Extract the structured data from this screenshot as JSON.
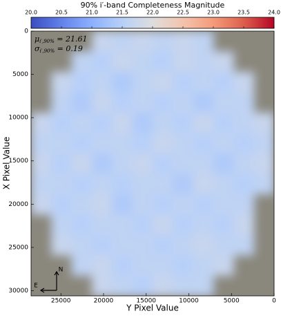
{
  "chart_data": {
    "type": "heatmap",
    "colorbar_title": "90% i′-band Completeness Magnitude",
    "x_label": "Y Pixel Value",
    "y_label": "X Pixel Value",
    "colormap": "coolwarm",
    "clim": [
      20.0,
      24.0
    ],
    "cticks": [
      {
        "value": 20.0,
        "label": "20.0"
      },
      {
        "value": 20.5,
        "label": "20.5"
      },
      {
        "value": 21.0,
        "label": "21.0"
      },
      {
        "value": 21.5,
        "label": "21.5"
      },
      {
        "value": 22.0,
        "label": "22.0"
      },
      {
        "value": 22.5,
        "label": "22.5"
      },
      {
        "value": 23.0,
        "label": "23.0"
      },
      {
        "value": 23.5,
        "label": "23.5"
      },
      {
        "value": 24.0,
        "label": "24.0"
      }
    ],
    "xlim": [
      28500,
      0
    ],
    "xticks": [
      25000,
      20000,
      15000,
      10000,
      5000,
      0
    ],
    "ylim": [
      0,
      30600
    ],
    "y_inverted": true,
    "yticks": [
      0,
      5000,
      10000,
      15000,
      20000,
      25000,
      30000
    ],
    "z": [
      [
        null,
        null,
        null,
        21.7,
        21.6,
        21.7,
        21.6,
        21.7,
        21.6,
        null,
        null,
        null
      ],
      [
        null,
        null,
        21.6,
        21.5,
        21.7,
        21.6,
        21.5,
        21.7,
        21.6,
        21.7,
        null,
        null
      ],
      [
        null,
        21.7,
        21.5,
        21.6,
        21.4,
        21.6,
        21.7,
        21.5,
        21.6,
        21.5,
        21.7,
        null
      ],
      [
        null,
        21.6,
        21.4,
        21.7,
        21.5,
        21.6,
        21.5,
        21.6,
        21.4,
        21.6,
        21.6,
        null
      ],
      [
        21.7,
        21.5,
        21.6,
        21.5,
        21.7,
        21.4,
        21.6,
        21.5,
        21.7,
        21.5,
        21.6,
        21.7
      ],
      [
        21.6,
        21.6,
        21.5,
        21.6,
        21.6,
        21.5,
        21.7,
        21.6,
        21.5,
        21.6,
        21.5,
        21.6
      ],
      [
        21.7,
        21.5,
        21.7,
        21.4,
        21.6,
        21.7,
        21.5,
        21.6,
        21.6,
        21.4,
        21.6,
        21.7
      ],
      [
        21.6,
        21.6,
        21.5,
        21.6,
        21.5,
        21.6,
        21.6,
        21.4,
        21.7,
        21.6,
        21.5,
        21.6
      ],
      [
        21.7,
        21.5,
        21.6,
        21.7,
        21.4,
        21.6,
        21.5,
        21.6,
        21.5,
        21.6,
        21.6,
        null
      ],
      [
        null,
        21.6,
        21.5,
        21.6,
        21.6,
        21.5,
        21.7,
        21.5,
        21.6,
        21.5,
        21.7,
        null
      ],
      [
        null,
        21.7,
        21.6,
        21.5,
        21.6,
        21.6,
        21.5,
        21.6,
        21.7,
        21.6,
        21.6,
        null
      ],
      [
        null,
        null,
        21.6,
        21.7,
        21.5,
        21.6,
        21.6,
        21.5,
        21.6,
        21.7,
        null,
        null
      ],
      [
        null,
        null,
        null,
        21.7,
        21.6,
        21.5,
        21.7,
        21.6,
        21.6,
        null,
        null,
        null
      ]
    ],
    "annotations": [
      {
        "symbol": "μ",
        "subscript": "i′,90%",
        "text": " = 21.61"
      },
      {
        "symbol": "σ",
        "subscript": "i′,90%",
        "text": " = 0.19"
      }
    ],
    "compass": {
      "north": "N",
      "east": "E"
    }
  }
}
